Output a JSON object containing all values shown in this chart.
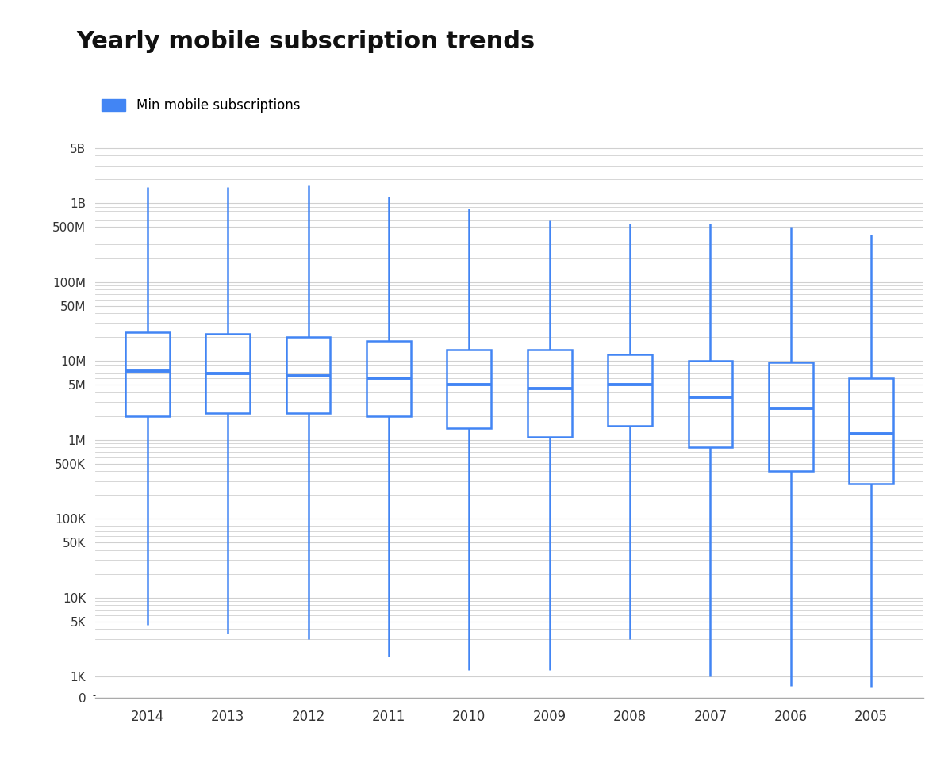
{
  "title": "Yearly mobile subscription trends",
  "legend_label": "Min mobile subscriptions",
  "box_color": "#4285F4",
  "background_color": "#ffffff",
  "grid_color": "#d0d0d0",
  "years": [
    "2014",
    "2013",
    "2012",
    "2011",
    "2010",
    "2009",
    "2008",
    "2007",
    "2006",
    "2005"
  ],
  "boxes": [
    {
      "whislo": 4500,
      "q1": 2000000,
      "med": 7500000,
      "q3": 23000000,
      "whishi": 1600000000
    },
    {
      "whislo": 3500,
      "q1": 2200000,
      "med": 7000000,
      "q3": 22000000,
      "whishi": 1600000000
    },
    {
      "whislo": 3000,
      "q1": 2200000,
      "med": 6500000,
      "q3": 20000000,
      "whishi": 1700000000
    },
    {
      "whislo": 1800,
      "q1": 2000000,
      "med": 6000000,
      "q3": 18000000,
      "whishi": 1200000000
    },
    {
      "whislo": 1200,
      "q1": 1400000,
      "med": 5000000,
      "q3": 14000000,
      "whishi": 850000000
    },
    {
      "whislo": 1200,
      "q1": 1100000,
      "med": 4500000,
      "q3": 14000000,
      "whishi": 600000000
    },
    {
      "whislo": 3000,
      "q1": 1500000,
      "med": 5000000,
      "q3": 12000000,
      "whishi": 550000000
    },
    {
      "whislo": 1000,
      "q1": 800000,
      "med": 3500000,
      "q3": 10000000,
      "whishi": 550000000
    },
    {
      "whislo": 700,
      "q1": 400000,
      "med": 2500000,
      "q3": 9500000,
      "whishi": 500000000
    },
    {
      "whislo": 600,
      "q1": 280000,
      "med": 1200000,
      "q3": 6000000,
      "whishi": 400000000
    }
  ],
  "ytick_positions": [
    0,
    1000,
    5000,
    10000,
    50000,
    100000,
    500000,
    1000000,
    5000000,
    10000000,
    50000000,
    100000000,
    500000000,
    1000000000,
    5000000000
  ],
  "ytick_labels": [
    "0",
    "1K",
    "5K",
    "10K",
    "50K",
    "100K",
    "500K",
    "1M",
    "5M",
    "10M",
    "50M",
    "100M",
    "500M",
    "1B",
    "5B"
  ],
  "minor_gridlines": [
    2000,
    3000,
    4000,
    6000,
    7000,
    8000,
    9000,
    20000,
    30000,
    40000,
    60000,
    70000,
    80000,
    90000,
    200000,
    300000,
    400000,
    600000,
    700000,
    800000,
    900000,
    2000000,
    3000000,
    4000000,
    6000000,
    7000000,
    8000000,
    9000000,
    20000000,
    30000000,
    40000000,
    60000000,
    70000000,
    80000000,
    90000000,
    200000000,
    300000000,
    400000000,
    600000000,
    700000000,
    800000000,
    900000000,
    2000000000,
    3000000000,
    4000000000
  ],
  "box_width": 0.55,
  "linewidth": 1.8,
  "median_linewidth": 2.8
}
